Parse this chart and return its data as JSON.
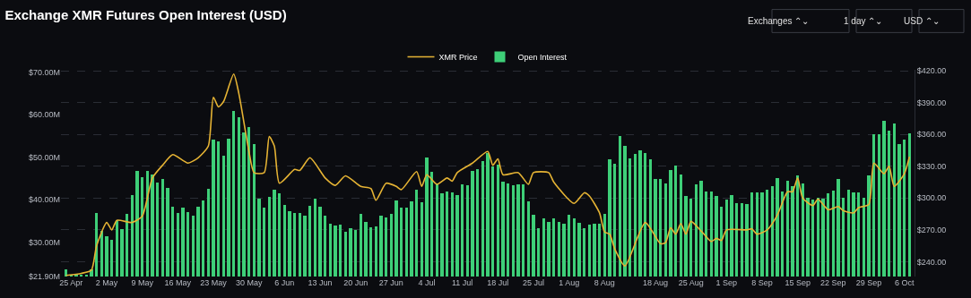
{
  "chart_data": {
    "type": "bar",
    "title": "Exchange XMR Futures Open Interest (USD)",
    "annotations": [
      "Exchanges ⌃⌄",
      "1 day ⌃⌄",
      "USD ⌃⌄"
    ],
    "x": [
      "--04-24",
      "--04-25",
      "--04-26",
      "--04-27",
      "--04-28",
      "--04-29",
      "--04-30",
      "--05-01",
      "--05-02",
      "--05-03",
      "--05-04",
      "--05-05",
      "--05-06",
      "--05-07",
      "--05-08",
      "--05-09",
      "--05-10",
      "--05-11",
      "--05-12",
      "--05-13",
      "--05-14",
      "--05-15",
      "--05-16",
      "--05-17",
      "--05-18",
      "--05-19",
      "--05-20",
      "--05-21",
      "--05-22",
      "--05-23",
      "--05-24",
      "--05-25",
      "--05-26",
      "--05-27",
      "--05-28",
      "--05-29",
      "--05-30",
      "--05-31",
      "--06-01",
      "--06-02",
      "--06-03",
      "--06-04",
      "--06-05",
      "--06-06",
      "--06-07",
      "--06-08",
      "--06-09",
      "--06-10",
      "--06-11",
      "--06-12",
      "--06-13",
      "--06-14",
      "--06-15",
      "--06-16",
      "--06-17",
      "--06-18",
      "--06-19",
      "--06-20",
      "--06-21",
      "--06-22",
      "--06-23",
      "--06-24",
      "--06-25",
      "--06-26",
      "--06-27",
      "--06-28",
      "--06-29",
      "--06-30",
      "--07-01",
      "--07-02",
      "--07-03",
      "--07-04",
      "--07-05",
      "--07-06",
      "--07-07",
      "--07-08",
      "--07-09",
      "--07-10",
      "--07-11",
      "--07-12",
      "--07-13",
      "--07-14",
      "--07-15",
      "--07-16",
      "--07-17",
      "--07-18",
      "--07-19",
      "--07-20",
      "--07-21",
      "--07-22",
      "--07-23",
      "--07-24",
      "--07-25",
      "--07-26",
      "--07-27",
      "--07-28",
      "--07-29",
      "--07-30",
      "--07-31",
      "--08-01",
      "--08-02",
      "--08-03",
      "--08-04",
      "--08-05",
      "--08-06",
      "--08-07",
      "--08-08",
      "--08-09",
      "--08-10",
      "--08-11",
      "--08-12",
      "--08-13",
      "--08-14",
      "--08-15",
      "--08-16",
      "--08-17",
      "--08-18",
      "--08-19",
      "--08-20",
      "--08-21",
      "--08-22",
      "--08-23",
      "--08-24",
      "--08-25",
      "--08-26",
      "--08-27",
      "--08-28",
      "--08-29",
      "--08-30",
      "--08-31",
      "--09-01",
      "--09-02",
      "--09-03",
      "--09-04",
      "--09-05",
      "--09-06",
      "--09-07",
      "--09-08",
      "--09-09",
      "--09-10",
      "--09-11",
      "--09-12",
      "--09-13",
      "--09-14",
      "--09-15",
      "--09-16",
      "--09-17",
      "--09-18",
      "--09-19",
      "--09-20",
      "--09-21",
      "--09-22",
      "--09-23",
      "--09-24",
      "--09-25",
      "--09-26",
      "--09-27",
      "--09-28",
      "--09-29",
      "--09-30",
      "--10-01",
      "--10-02",
      "--10-03",
      "--10-04",
      "--10-05",
      "--10-06",
      "--10-07"
    ],
    "xlim": [
      "--04-23",
      "--10-08"
    ],
    "xticks": [
      {
        "value": "--04-25",
        "label": "25 Apr"
      },
      {
        "value": "--05-02",
        "label": "2 May"
      },
      {
        "value": "--05-09",
        "label": "9 May"
      },
      {
        "value": "--05-16",
        "label": "16 May"
      },
      {
        "value": "--05-23",
        "label": "23 May"
      },
      {
        "value": "--05-30",
        "label": "30 May"
      },
      {
        "value": "--06-06",
        "label": "6 Jun"
      },
      {
        "value": "--06-13",
        "label": "13 Jun"
      },
      {
        "value": "--06-20",
        "label": "20 Jun"
      },
      {
        "value": "--06-27",
        "label": "27 Jun"
      },
      {
        "value": "--07-04",
        "label": "4 Jul"
      },
      {
        "value": "--07-11",
        "label": "11 Jul"
      },
      {
        "value": "--07-18",
        "label": "18 Jul"
      },
      {
        "value": "--07-25",
        "label": "25 Jul"
      },
      {
        "value": "--08-01",
        "label": "1 Aug"
      },
      {
        "value": "--08-08",
        "label": "8 Aug"
      },
      {
        "value": "--08-18",
        "label": "18 Aug"
      },
      {
        "value": "--08-25",
        "label": "25 Aug"
      },
      {
        "value": "--09-01",
        "label": "1 Sep"
      },
      {
        "value": "--09-08",
        "label": "8 Sep"
      },
      {
        "value": "--09-15",
        "label": "15 Sep"
      },
      {
        "value": "--09-22",
        "label": "22 Sep"
      },
      {
        "value": "--09-29",
        "label": "29 Sep"
      },
      {
        "value": "--10-06",
        "label": "6 Oct"
      }
    ],
    "ylim": [
      21.9,
      70.5
    ],
    "yticks": [
      {
        "value": 21.9,
        "label": "$21.90M"
      },
      {
        "value": 30,
        "label": "$30.00M"
      },
      {
        "value": 40,
        "label": "$40.00M"
      },
      {
        "value": 50,
        "label": "$50.00M"
      },
      {
        "value": 60,
        "label": "$60.00M"
      },
      {
        "value": 70,
        "label": "$70.00M"
      }
    ],
    "y2lim": [
      226,
      421
    ],
    "y2ticks": [
      {
        "value": 240,
        "label": "$240.00"
      },
      {
        "value": 270,
        "label": "$270.00"
      },
      {
        "value": 300,
        "label": "$300.00"
      },
      {
        "value": 330,
        "label": "$330.00"
      },
      {
        "value": 360,
        "label": "$360.00"
      },
      {
        "value": 390,
        "label": "$390.00"
      },
      {
        "value": 420,
        "label": "$420.00"
      }
    ],
    "grid": true,
    "legend": "top",
    "marker": "none",
    "series": [
      {
        "name": "XMR Price",
        "type": "line",
        "axis": "y2",
        "color": "#e5b334",
        "x": [
          "--04-24",
          "--04-27",
          "--04-29",
          "--04-30",
          "--05-02",
          "--05-03",
          "--05-04",
          "--05-07",
          "--05-09",
          "--05-11",
          "--05-13",
          "--05-15",
          "--05-18",
          "--05-20",
          "--05-22",
          "--05-23",
          "--05-24",
          "--05-25",
          "--05-27",
          "--05-28",
          "--05-30",
          "--05-31",
          "--06-02",
          "--06-03",
          "--06-04",
          "--06-05",
          "--06-08",
          "--06-09",
          "--06-11",
          "--06-14",
          "--06-16",
          "--06-18",
          "--06-21",
          "--06-23",
          "--06-24",
          "--06-26",
          "--06-28",
          "--06-29",
          "--07-02",
          "--07-03",
          "--07-04",
          "--07-06",
          "--07-08",
          "--07-09",
          "--07-10",
          "--07-13",
          "--07-16",
          "--07-17",
          "--07-18",
          "--07-19",
          "--07-22",
          "--07-24",
          "--07-25",
          "--07-28",
          "--07-29",
          "--08-02",
          "--08-04",
          "--08-05",
          "--08-07",
          "--08-08",
          "--08-09",
          "--08-10",
          "--08-12",
          "--08-16",
          "--08-19",
          "--08-20",
          "--08-21",
          "--08-22",
          "--08-23",
          "--08-24",
          "--08-25",
          "--08-27",
          "--08-29",
          "--08-30",
          "--08-31",
          "--09-01",
          "--09-05",
          "--09-06",
          "--09-07",
          "--09-09",
          "--09-11",
          "--09-13",
          "--09-14",
          "--09-15",
          "--09-16",
          "--09-18",
          "--09-19",
          "--09-21",
          "--09-23",
          "--09-24",
          "--09-26",
          "--09-27",
          "--09-29",
          "--09-30",
          "--10-02",
          "--10-03",
          "--10-04",
          "--10-06",
          "--10-07"
        ],
        "values": [
          227,
          229,
          232,
          255,
          277,
          270,
          279,
          277,
          283,
          319,
          331,
          341,
          333,
          338,
          349,
          395,
          386,
          391,
          417,
          399,
          344,
          324,
          324,
          358,
          349,
          314,
          327,
          326,
          338,
          319,
          312,
          321,
          311,
          309,
          298,
          314,
          311,
          308,
          325,
          311,
          322,
          313,
          319,
          316,
          324,
          333,
          344,
          331,
          337,
          322,
          324,
          313,
          324,
          324,
          315,
          295,
          305,
          302,
          286,
          268,
          266,
          252,
          236,
          277,
          257,
          258,
          272,
          266,
          276,
          266,
          278,
          269,
          259,
          262,
          260,
          270,
          270,
          271,
          266,
          270,
          284,
          306,
          306,
          319,
          300,
          293,
          299,
          289,
          292,
          288,
          286,
          291,
          294,
          333,
          323,
          330,
          311,
          323,
          339
        ]
      },
      {
        "name": "Open Interest",
        "color": "#3ecf78",
        "values": [
          23.5,
          22.4,
          22.3,
          22.3,
          22.3,
          23.5,
          36.8,
          32.7,
          31.4,
          30.5,
          35.2,
          33.1,
          36.7,
          41.1,
          46.8,
          45.3,
          46.7,
          45.9,
          43.9,
          44.8,
          42.7,
          38.4,
          36.9,
          38.0,
          37.1,
          36.2,
          38.4,
          39.8,
          42.6,
          54.1,
          53.7,
          50.3,
          54.3,
          60.9,
          59.4,
          55.7,
          57.1,
          53.0,
          40.2,
          38.1,
          40.7,
          42.4,
          41.5,
          38.8,
          37.2,
          36.8,
          36.8,
          36.3,
          38.5,
          40.2,
          38.4,
          36.3,
          34.3,
          33.9,
          34.1,
          32.4,
          33.2,
          32.9,
          36.7,
          34.7,
          33.4,
          33.6,
          36.3,
          35.7,
          36.7,
          39.8,
          38.2,
          38.2,
          39.6,
          42.4,
          39.3,
          49.9,
          46.6,
          43.7,
          41.5,
          41.8,
          41.6,
          41.1,
          43.6,
          43.4,
          46.8,
          47.1,
          49.1,
          51.0,
          47.7,
          48.1,
          44.1,
          43.7,
          43.3,
          43.5,
          43.5,
          39.5,
          36.4,
          33.3,
          35.5,
          34.8,
          35.5,
          34.8,
          34.3,
          36.5,
          35.6,
          34.5,
          33.3,
          34.1,
          34.4,
          34.4,
          36.7,
          49.4,
          48.5,
          54.9,
          52.7,
          49.6,
          50.8,
          51.6,
          50.9,
          49.4,
          44.9,
          44.9,
          43.7,
          47.0,
          47.9,
          45.9,
          40.8,
          40.1,
          43.6,
          44.5,
          41.8,
          41.8,
          40.8,
          38.4,
          39.9,
          41.0,
          39.1,
          39.1,
          38.9,
          41.6,
          41.6,
          41.6,
          42.3,
          43.1,
          45.1,
          41.8,
          44.5,
          43.1,
          45.7,
          43.7,
          40.5,
          39.9,
          40.5,
          40.1,
          41.5,
          42.2,
          44.9,
          40.5,
          42.3,
          41.6,
          41.6,
          40.5,
          45.7,
          55.4,
          55.3,
          58.6,
          56.2,
          57.8,
          53.0,
          54.1,
          55.6
        ]
      }
    ]
  }
}
